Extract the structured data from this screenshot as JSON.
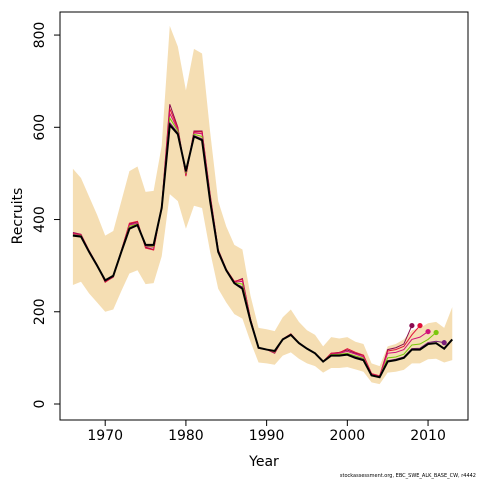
{
  "chart_data": {
    "type": "line",
    "xlabel": "Year",
    "ylabel": "Recruits",
    "footnote": "stockassessment.org, EBC_SWE_ALK_BASE_CW, r4442",
    "x": [
      1966,
      1967,
      1968,
      1969,
      1970,
      1971,
      1972,
      1973,
      1974,
      1975,
      1976,
      1977,
      1978,
      1979,
      1980,
      1981,
      1982,
      1983,
      1984,
      1985,
      1986,
      1987,
      1988,
      1989,
      1990,
      1991,
      1992,
      1993,
      1994,
      1995,
      1996,
      1997,
      1998,
      1999,
      2000,
      2001,
      2002,
      2003,
      2004,
      2005,
      2006,
      2007,
      2008,
      2009,
      2010,
      2011,
      2012,
      2013
    ],
    "xlim": [
      1964.4,
      2014.95
    ],
    "xticks": [
      1970,
      1980,
      1990,
      2000,
      2010
    ],
    "ylim": [
      -34.7,
      850
    ],
    "yticks": [
      0,
      200,
      400,
      600,
      800
    ],
    "band": {
      "color": "#f5deb3",
      "upper": [
        510,
        490,
        450,
        410,
        365,
        375,
        440,
        505,
        515,
        460,
        462,
        560,
        820,
        775,
        680,
        770,
        760,
        590,
        440,
        385,
        345,
        335,
        235,
        165,
        162,
        158,
        188,
        205,
        178,
        160,
        150,
        125,
        145,
        142,
        145,
        135,
        130,
        88,
        82,
        125,
        130,
        140,
        160,
        165,
        175,
        178,
        165,
        210
      ],
      "lower": [
        258,
        265,
        240,
        220,
        200,
        205,
        245,
        283,
        290,
        260,
        262,
        320,
        455,
        440,
        380,
        430,
        425,
        330,
        250,
        220,
        195,
        185,
        135,
        90,
        88,
        85,
        105,
        112,
        98,
        88,
        82,
        68,
        78,
        78,
        80,
        75,
        70,
        47,
        43,
        68,
        70,
        74,
        88,
        88,
        97,
        98,
        90,
        95
      ]
    },
    "series": [
      {
        "color": "#8b0a50",
        "values": [
          372,
          368,
          333,
          302,
          265,
          275,
          333,
          390,
          395,
          340,
          335,
          430,
          650,
          600,
          495,
          592,
          592,
          455,
          335,
          292,
          265,
          272,
          185,
          122,
          118,
          110,
          140,
          152,
          133,
          120,
          110,
          92,
          110,
          112,
          117,
          110,
          105,
          65,
          60,
          118,
          122,
          130,
          170,
          null,
          null,
          null,
          null,
          null
        ]
      },
      {
        "color": "#e0103a",
        "values": [
          370,
          367,
          332,
          301,
          264,
          276,
          332,
          392,
          396,
          338,
          334,
          428,
          640,
          598,
          494,
          590,
          590,
          452,
          334,
          292,
          266,
          270,
          184,
          121,
          118,
          111,
          141,
          152,
          133,
          120,
          110,
          92,
          110,
          111,
          120,
          112,
          106,
          66,
          61,
          115,
          118,
          125,
          150,
          170,
          null,
          null,
          null,
          null
        ]
      },
      {
        "color": "#d0107a",
        "values": [
          369,
          366,
          331,
          301,
          266,
          277,
          331,
          388,
          392,
          342,
          340,
          428,
          630,
          595,
          498,
          588,
          586,
          450,
          333,
          291,
          264,
          266,
          183,
          121,
          118,
          112,
          141,
          151,
          132,
          120,
          110,
          92,
          108,
          110,
          114,
          108,
          102,
          64,
          60,
          110,
          112,
          118,
          140,
          145,
          157,
          null,
          null,
          null
        ]
      },
      {
        "color": "#7ac70c",
        "values": [
          367,
          365,
          331,
          300,
          267,
          278,
          331,
          385,
          390,
          343,
          342,
          427,
          620,
          592,
          500,
          585,
          580,
          446,
          332,
          291,
          263,
          260,
          182,
          122,
          118,
          113,
          140,
          151,
          132,
          120,
          110,
          92,
          107,
          108,
          110,
          104,
          99,
          63,
          59,
          100,
          102,
          108,
          128,
          130,
          140,
          155,
          null,
          null
        ]
      },
      {
        "color": "#7a1f7a",
        "values": [
          366,
          364,
          330,
          300,
          268,
          278,
          330,
          382,
          389,
          344,
          344,
          426,
          610,
          588,
          503,
          582,
          575,
          442,
          331,
          290,
          262,
          254,
          181,
          122,
          118,
          114,
          140,
          150,
          132,
          120,
          110,
          92,
          106,
          106,
          108,
          102,
          97,
          62,
          58,
          94,
          97,
          102,
          120,
          121,
          133,
          136,
          133,
          null
        ]
      },
      {
        "color": "#000000",
        "width": 2,
        "values": [
          365,
          363,
          330,
          300,
          268,
          278,
          330,
          380,
          388,
          345,
          345,
          425,
          605,
          585,
          505,
          580,
          572,
          440,
          330,
          290,
          262,
          250,
          180,
          122,
          118,
          115,
          140,
          150,
          132,
          120,
          110,
          92,
          105,
          105,
          107,
          100,
          95,
          62,
          58,
          92,
          95,
          100,
          118,
          118,
          130,
          132,
          120,
          140
        ]
      }
    ],
    "end_points": true
  }
}
